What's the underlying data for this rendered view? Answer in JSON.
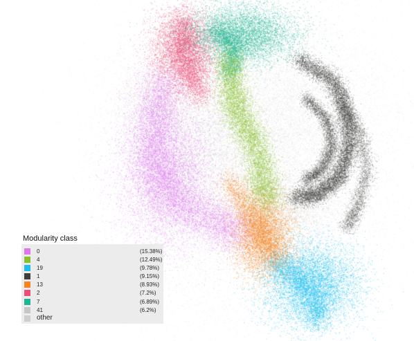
{
  "legend": {
    "title": "Modularity class",
    "items": [
      {
        "label": "0",
        "percent": "(15.38%)",
        "color": "#dd77ee"
      },
      {
        "label": "4",
        "percent": "(12.49%)",
        "color": "#88c22a"
      },
      {
        "label": "19",
        "percent": "(9.78%)",
        "color": "#1cbff0"
      },
      {
        "label": "1",
        "percent": "(9.15%)",
        "color": "#3e3e3c"
      },
      {
        "label": "13",
        "percent": "(8.93%)",
        "color": "#f7841f"
      },
      {
        "label": "2",
        "percent": "(7.2%)",
        "color": "#ee4e77"
      },
      {
        "label": "7",
        "percent": "(6.89%)",
        "color": "#1fb592"
      },
      {
        "label": "41",
        "percent": "(6.2%)",
        "color": "#c6c6c6"
      },
      {
        "label": "other",
        "percent": "",
        "color": "#cdcdcd"
      }
    ]
  }
}
